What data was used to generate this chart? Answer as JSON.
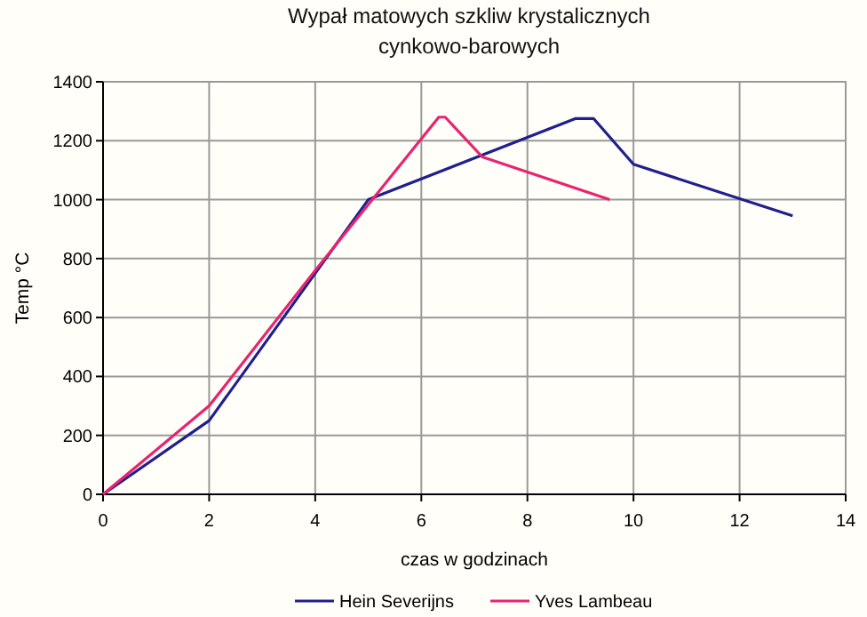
{
  "chart_data": {
    "type": "line",
    "title": "Wypał matowych szkliw krystalicznych\ncynkowo-barowych",
    "xlabel": "czas w godzinach",
    "ylabel": "Temp °C",
    "xlim": [
      0,
      14
    ],
    "xticks": [
      0,
      2,
      4,
      6,
      8,
      10,
      12,
      14
    ],
    "ylim": [
      0,
      1400
    ],
    "yticks": [
      0,
      200,
      400,
      600,
      800,
      1000,
      1200,
      1400
    ],
    "grid": true,
    "legend": "bottom",
    "marker": "none",
    "line_style": "solid",
    "series": [
      {
        "name": "Hein Severijns",
        "color": "#1f1f8f",
        "x": [
          0,
          2,
          5,
          8.9,
          9.25,
          10,
          13
        ],
        "values": [
          0,
          250,
          1000,
          1275,
          1275,
          1120,
          945
        ]
      },
      {
        "name": "Yves Lambeau",
        "color": "#e8246e",
        "x": [
          0,
          2,
          4,
          6.33,
          6.45,
          7.15,
          9.55
        ],
        "values": [
          0,
          300,
          760,
          1280,
          1280,
          1145,
          1000
        ]
      }
    ]
  }
}
